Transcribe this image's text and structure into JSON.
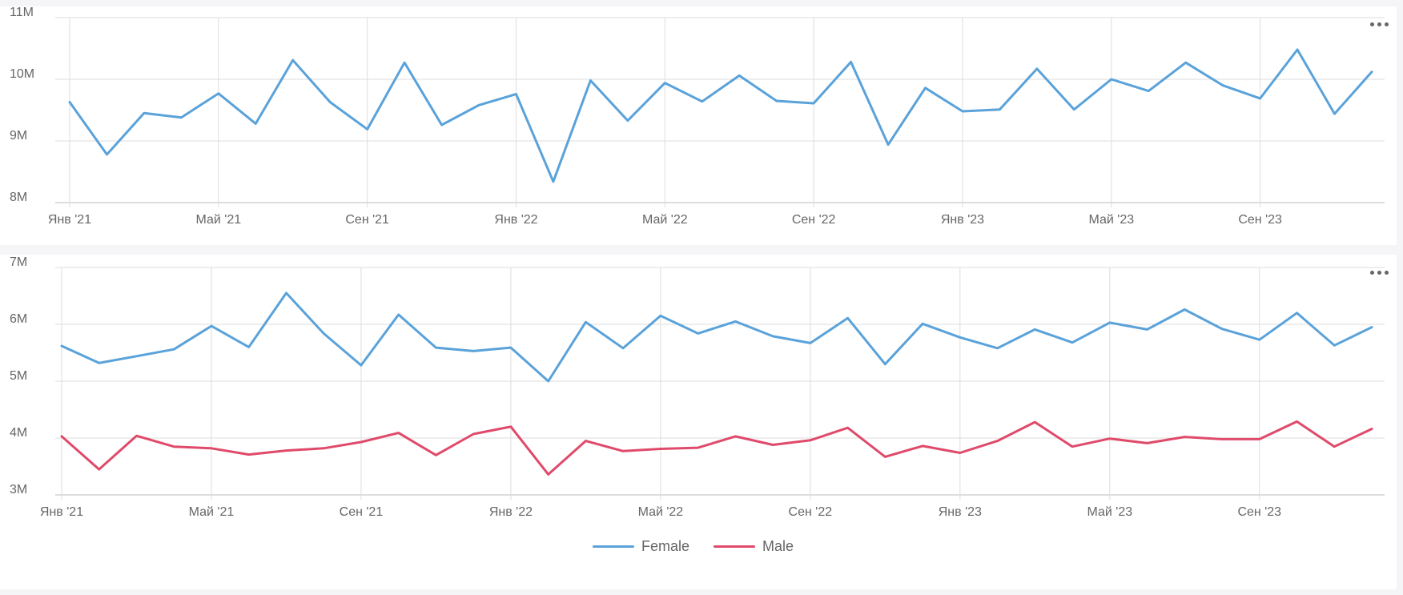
{
  "chart_data": [
    {
      "type": "line",
      "x": [
        "2021-01",
        "2021-02",
        "2021-03",
        "2021-04",
        "2021-05",
        "2021-06",
        "2021-07",
        "2021-08",
        "2021-09",
        "2021-10",
        "2021-11",
        "2021-12",
        "2022-01",
        "2022-02",
        "2022-03",
        "2022-04",
        "2022-05",
        "2022-06",
        "2022-07",
        "2022-08",
        "2022-09",
        "2022-10",
        "2022-11",
        "2022-12",
        "2023-01",
        "2023-02",
        "2023-03",
        "2023-04",
        "2023-05",
        "2023-06",
        "2023-07",
        "2023-08",
        "2023-09",
        "2023-10",
        "2023-11",
        "2023-12"
      ],
      "x_tick_labels": [
        "Янв '21",
        "Май '21",
        "Сен '21",
        "Янв '22",
        "Май '22",
        "Сен '22",
        "Янв '23",
        "Май '23",
        "Сен '23"
      ],
      "y_tick_labels": [
        "8M",
        "9M",
        "10M",
        "11M"
      ],
      "y_ticks": [
        8000000,
        9000000,
        10000000,
        11000000
      ],
      "ylim": [
        8000000,
        11000000
      ],
      "grid": true,
      "series": [
        {
          "color": "#5aa2da",
          "values": [
            9630000,
            8780000,
            9450000,
            9380000,
            9770000,
            9280000,
            10310000,
            9630000,
            9190000,
            10270000,
            9260000,
            9580000,
            9760000,
            8340000,
            9980000,
            9330000,
            9940000,
            9640000,
            10060000,
            9650000,
            9610000,
            10280000,
            8940000,
            9860000,
            9480000,
            9510000,
            10170000,
            9510000,
            10000000,
            9810000,
            10270000,
            9900000,
            9690000,
            10480000,
            9440000,
            10120000
          ]
        }
      ]
    },
    {
      "type": "line",
      "x": [
        "2021-01",
        "2021-02",
        "2021-03",
        "2021-04",
        "2021-05",
        "2021-06",
        "2021-07",
        "2021-08",
        "2021-09",
        "2021-10",
        "2021-11",
        "2021-12",
        "2022-01",
        "2022-02",
        "2022-03",
        "2022-04",
        "2022-05",
        "2022-06",
        "2022-07",
        "2022-08",
        "2022-09",
        "2022-10",
        "2022-11",
        "2022-12",
        "2023-01",
        "2023-02",
        "2023-03",
        "2023-04",
        "2023-05",
        "2023-06",
        "2023-07",
        "2023-08",
        "2023-09",
        "2023-10",
        "2023-11",
        "2023-12"
      ],
      "x_tick_labels": [
        "Янв '21",
        "Май '21",
        "Сен '21",
        "Янв '22",
        "Май '22",
        "Сен '22",
        "Янв '23",
        "Май '23",
        "Сен '23"
      ],
      "y_tick_labels": [
        "3M",
        "4M",
        "5M",
        "6M",
        "7M"
      ],
      "y_ticks": [
        3000000,
        4000000,
        5000000,
        6000000,
        7000000
      ],
      "ylim": [
        3000000,
        7000000
      ],
      "grid": true,
      "legend": "bottom-center",
      "series": [
        {
          "name": "Female",
          "color": "#5aa2da",
          "values": [
            5620000,
            5320000,
            5440000,
            5560000,
            5970000,
            5600000,
            6550000,
            5840000,
            5280000,
            6170000,
            5590000,
            5530000,
            5590000,
            5000000,
            6040000,
            5580000,
            6150000,
            5840000,
            6050000,
            5790000,
            5670000,
            6110000,
            5300000,
            6010000,
            5770000,
            5580000,
            5910000,
            5680000,
            6030000,
            5910000,
            6260000,
            5920000,
            5730000,
            6200000,
            5630000,
            5950000
          ]
        },
        {
          "name": "Male",
          "color": "#e04a6a",
          "values": [
            4030000,
            3450000,
            4040000,
            3850000,
            3820000,
            3710000,
            3780000,
            3820000,
            3930000,
            4090000,
            3700000,
            4070000,
            4200000,
            3360000,
            3950000,
            3770000,
            3810000,
            3830000,
            4030000,
            3880000,
            3960000,
            4180000,
            3670000,
            3860000,
            3740000,
            3950000,
            4280000,
            3850000,
            3990000,
            3910000,
            4020000,
            3980000,
            3980000,
            4290000,
            3850000,
            4160000
          ]
        }
      ]
    }
  ]
}
